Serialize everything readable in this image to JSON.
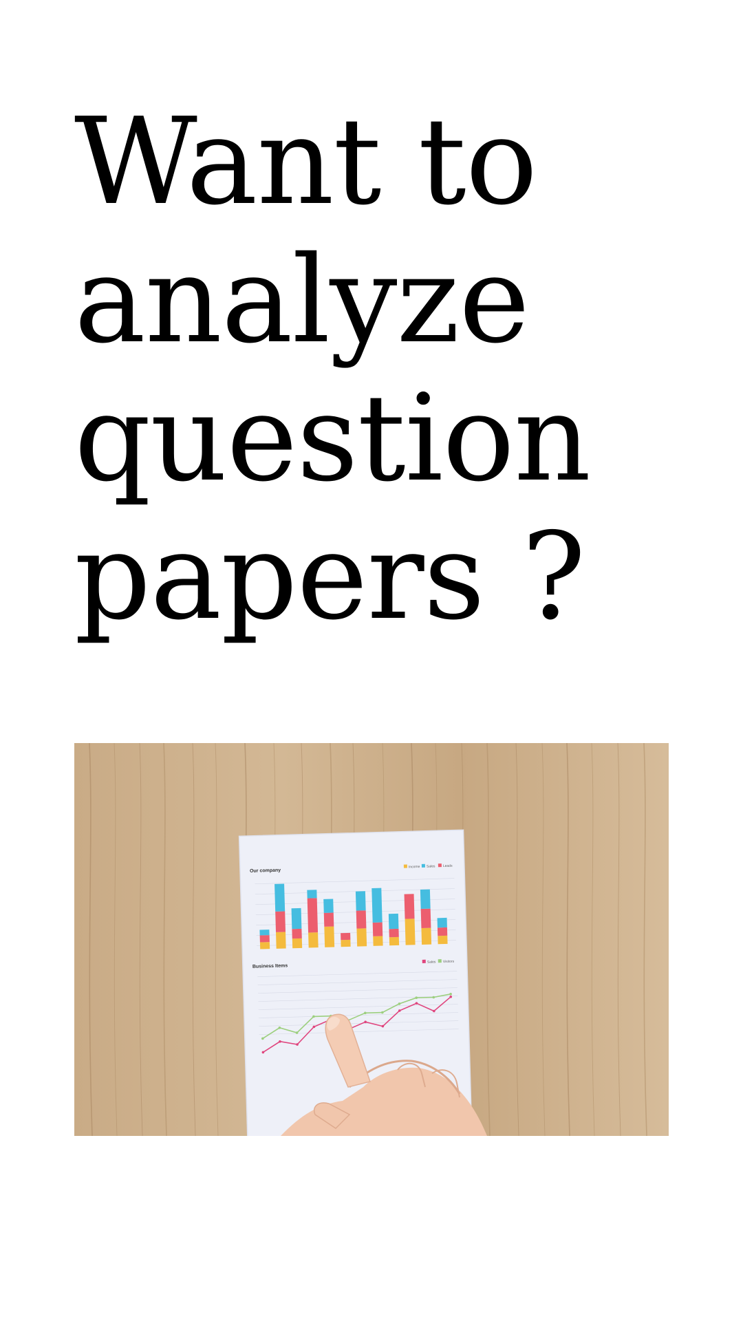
{
  "headline": {
    "lines": [
      "Want to",
      "analyze",
      "question",
      "papers ?"
    ],
    "color": "#000000"
  },
  "photo": {
    "subject": "hand-pointing-at-printed-report",
    "report": {
      "top_chart_title": "Our company",
      "top_legend": [
        "Income",
        "Sales",
        "Leads"
      ],
      "bottom_chart_title": "Business Items",
      "bottom_legend": [
        "Sales",
        "Visitors"
      ],
      "colors": {
        "cyan": "#45bde0",
        "red": "#ec5e6e",
        "yellow": "#f4bb3e",
        "green": "#9ccf7e",
        "magenta": "#e0457e",
        "paper": "#eef0f8",
        "wood": "#c8aa86"
      }
    }
  }
}
